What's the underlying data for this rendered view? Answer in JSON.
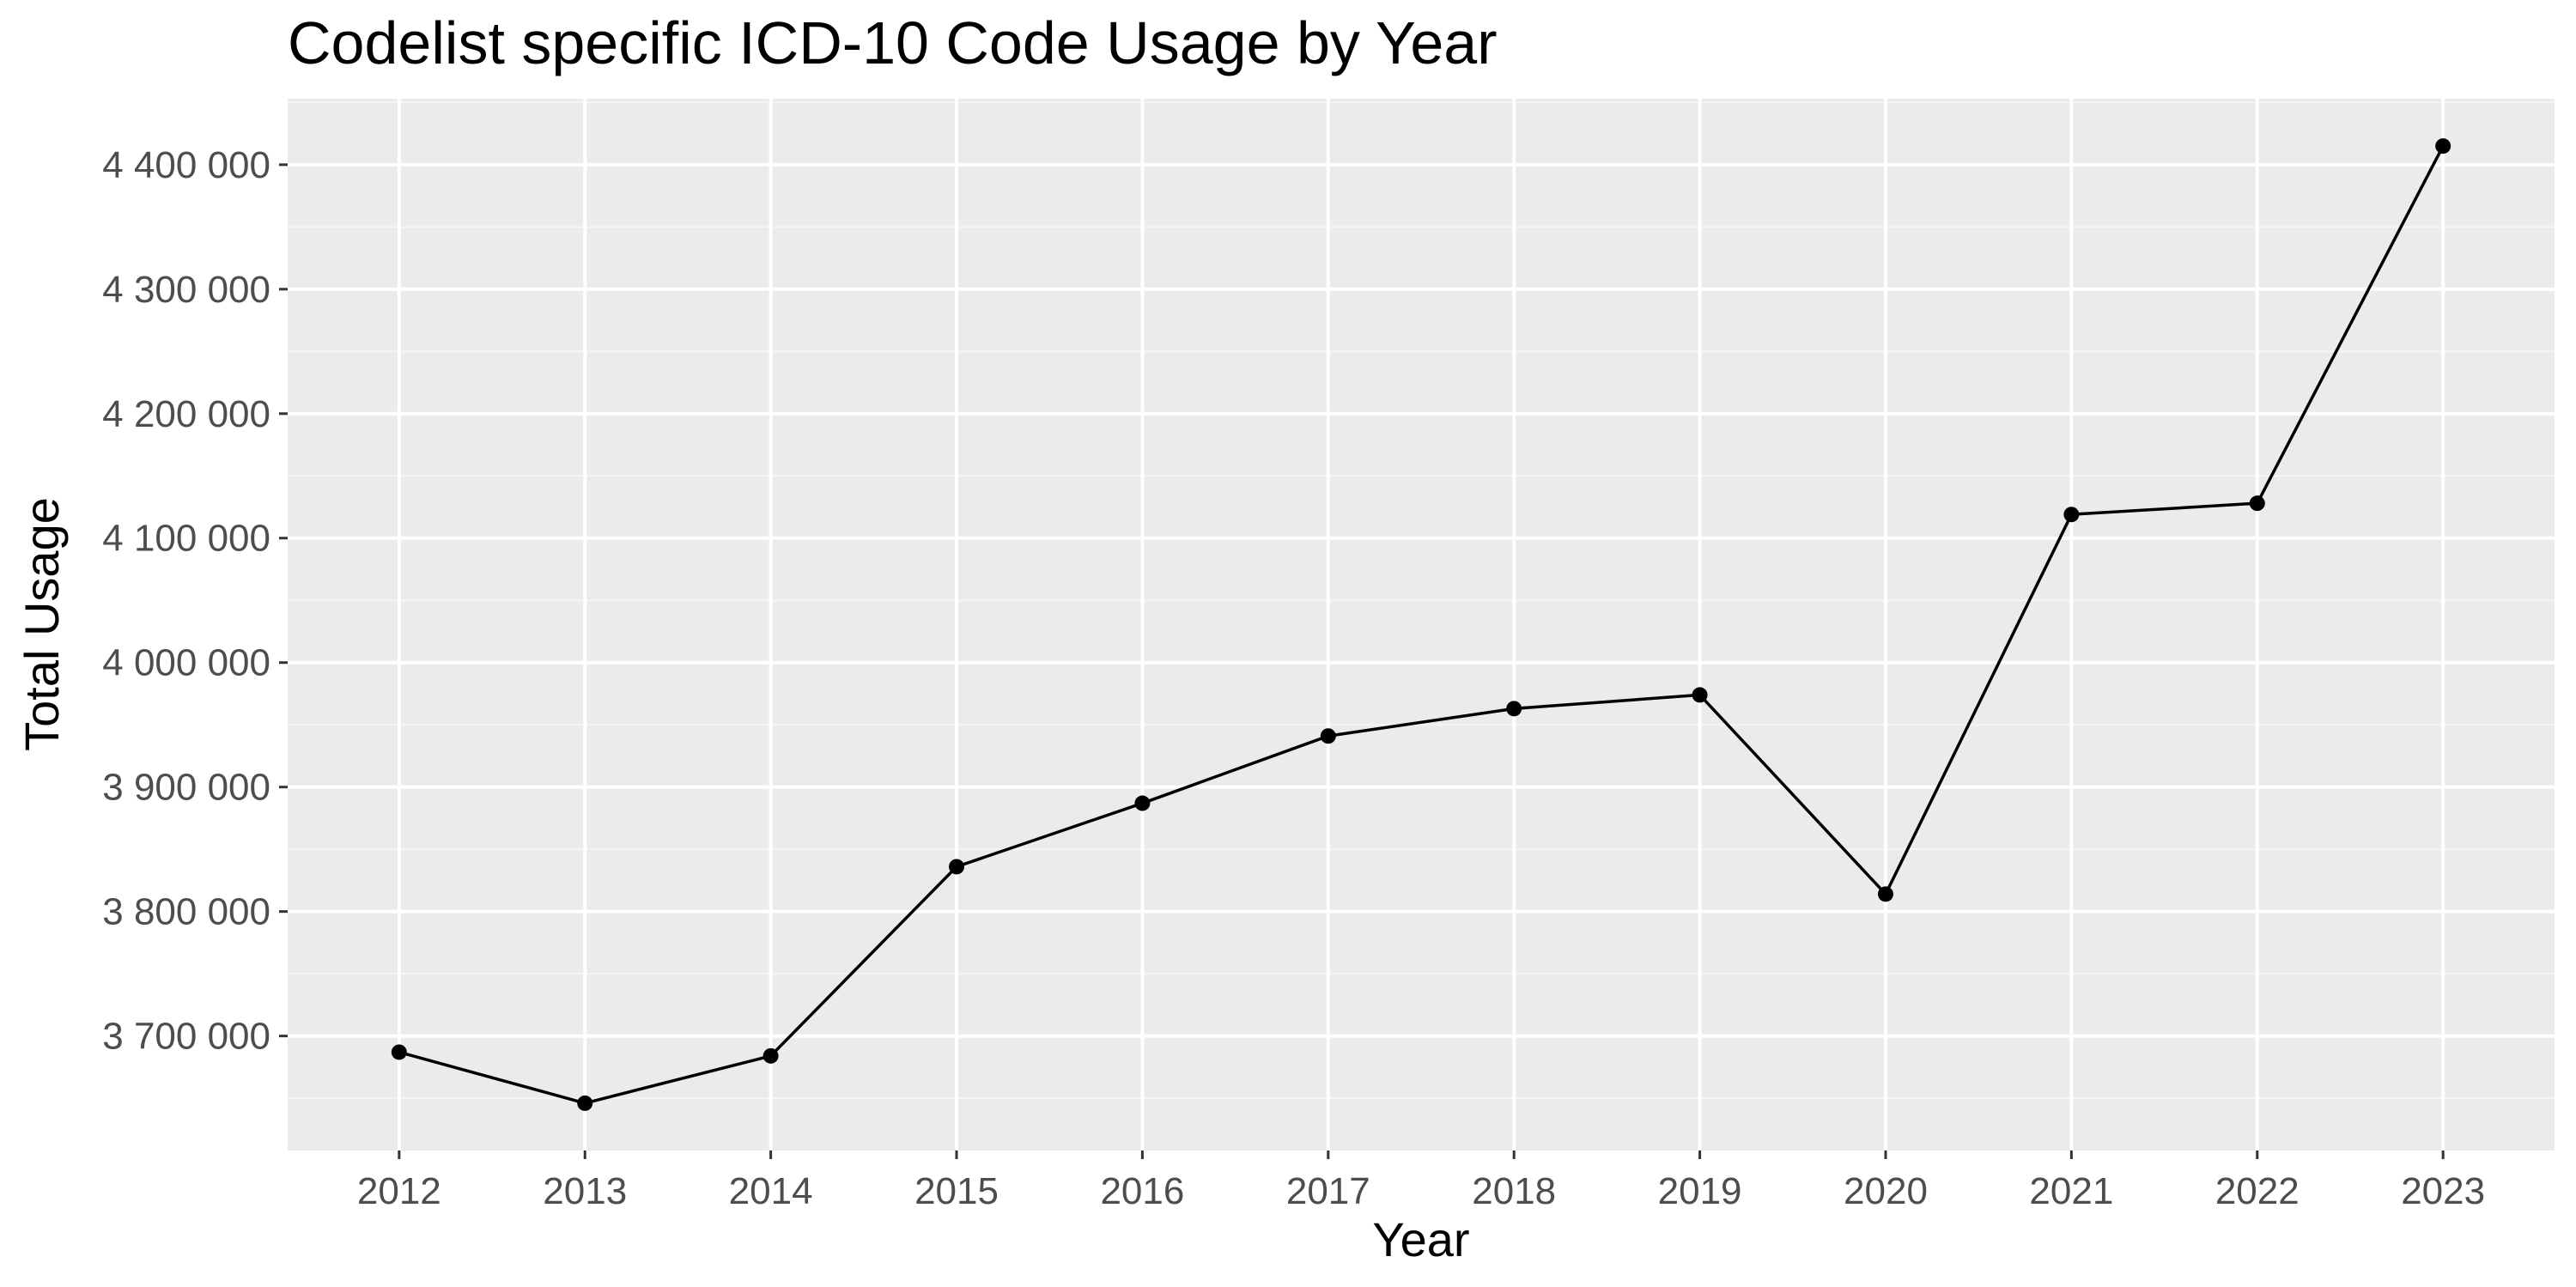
{
  "chart_data": {
    "type": "line",
    "title": "Codelist specific ICD-10 Code Usage by Year",
    "xlabel": "Year",
    "ylabel": "Total Usage",
    "x": [
      "2012",
      "2013",
      "2014",
      "2015",
      "2016",
      "2017",
      "2018",
      "2019",
      "2020",
      "2021",
      "2022",
      "2023"
    ],
    "series": [
      {
        "values": [
          3687000,
          3646000,
          3684000,
          3836000,
          3887000,
          3941000,
          3963000,
          3974000,
          3814000,
          4119000,
          4128000,
          4415000
        ]
      }
    ],
    "ylim": [
      3608000,
      4453000
    ],
    "yticks": [
      3700000,
      3800000,
      3900000,
      4000000,
      4100000,
      4200000,
      4300000,
      4400000
    ],
    "ytick_labels": [
      "3 700 000",
      "3 800 000",
      "3 900 000",
      "4 000 000",
      "4 100 000",
      "4 200 000",
      "4 300 000",
      "4 400 000"
    ],
    "grid": true,
    "legend": "none",
    "colors": {
      "panel_background": "#ebebeb",
      "grid_major": "#ffffff",
      "grid_minor": "#f5f5f5",
      "line": "#000000",
      "point": "#000000",
      "tick_text": "#4d4d4d",
      "tick_mark": "#333333"
    }
  }
}
